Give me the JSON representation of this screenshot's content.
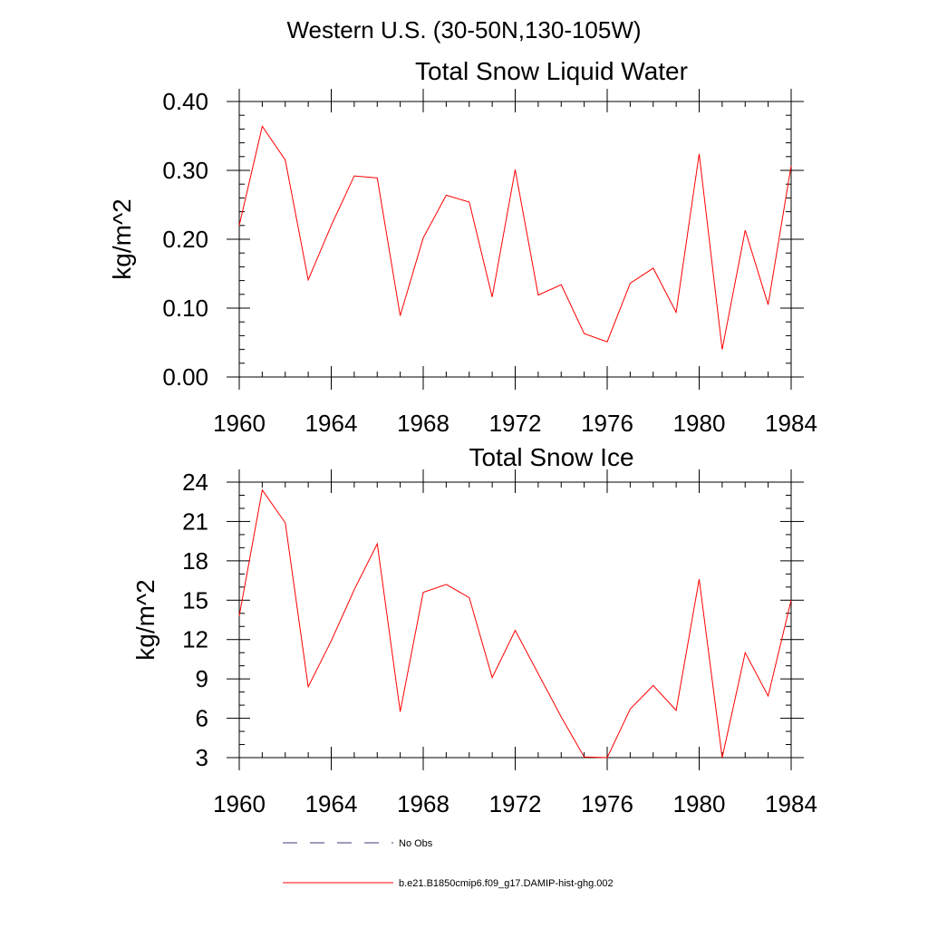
{
  "figure": {
    "suptitle": "Western U.S. (30-50N,130-105W)"
  },
  "legend": {
    "placement": "bottom-center",
    "entries": [
      {
        "label": "No Obs",
        "style": "dashed",
        "color": "#3a3a7a"
      },
      {
        "label": "b.e21.B1850cmip6.f09_g17.DAMIP-hist-ghg.002",
        "style": "solid",
        "color": "#ff0000"
      }
    ]
  },
  "chart_data": [
    {
      "type": "line",
      "title": "Total Snow Liquid Water",
      "xlabel": "",
      "ylabel": "kg/m^2",
      "xlim": [
        1960,
        1984
      ],
      "ylim": [
        0,
        0.4
      ],
      "x_ticks": [
        "1960",
        "1964",
        "1968",
        "1972",
        "1976",
        "1980",
        "1984"
      ],
      "x_tick_values": [
        1960,
        1964,
        1968,
        1972,
        1976,
        1980,
        1984
      ],
      "y_ticks": [
        "0.00",
        "0.10",
        "0.20",
        "0.30",
        "0.40"
      ],
      "y_tick_values": [
        0,
        0.1,
        0.2,
        0.3,
        0.4
      ],
      "y_minor_step": 0.02,
      "x_minor_step": 1,
      "grid": false,
      "x": [
        1960,
        1961,
        1962,
        1963,
        1964,
        1965,
        1966,
        1967,
        1968,
        1969,
        1970,
        1971,
        1972,
        1973,
        1974,
        1975,
        1976,
        1977,
        1978,
        1979,
        1980,
        1981,
        1982,
        1983,
        1984
      ],
      "series": [
        {
          "color": "#ff0000",
          "values": [
            0.22,
            0.364,
            0.315,
            0.141,
            0.22,
            0.292,
            0.289,
            0.089,
            0.202,
            0.264,
            0.254,
            0.116,
            0.301,
            0.119,
            0.134,
            0.063,
            0.051,
            0.136,
            0.158,
            0.094,
            0.324,
            0.04,
            0.213,
            0.105,
            0.307
          ]
        }
      ]
    },
    {
      "type": "line",
      "title": "Total Snow Ice",
      "xlabel": "",
      "ylabel": "kg/m^2",
      "xlim": [
        1960,
        1984
      ],
      "ylim": [
        3,
        24
      ],
      "x_ticks": [
        "1960",
        "1964",
        "1968",
        "1972",
        "1976",
        "1980",
        "1984"
      ],
      "x_tick_values": [
        1960,
        1964,
        1968,
        1972,
        1976,
        1980,
        1984
      ],
      "y_ticks": [
        "3",
        "6",
        "9",
        "12",
        "15",
        "18",
        "21",
        "24"
      ],
      "y_tick_values": [
        3,
        6,
        9,
        12,
        15,
        18,
        21,
        24
      ],
      "y_minor_step": 1,
      "x_minor_step": 1,
      "grid": false,
      "x": [
        1960,
        1961,
        1962,
        1963,
        1964,
        1965,
        1966,
        1967,
        1968,
        1969,
        1970,
        1971,
        1972,
        1973,
        1974,
        1975,
        1976,
        1977,
        1978,
        1979,
        1980,
        1981,
        1982,
        1983,
        1984
      ],
      "series": [
        {
          "color": "#ff0000",
          "values": [
            13.8,
            23.4,
            20.9,
            8.4,
            11.9,
            15.8,
            19.3,
            6.5,
            15.6,
            16.2,
            15.2,
            9.1,
            12.7,
            9.4,
            6.1,
            3.05,
            3.0,
            6.7,
            8.5,
            6.6,
            16.6,
            3.0,
            11.0,
            7.7,
            15.0
          ]
        }
      ]
    }
  ]
}
